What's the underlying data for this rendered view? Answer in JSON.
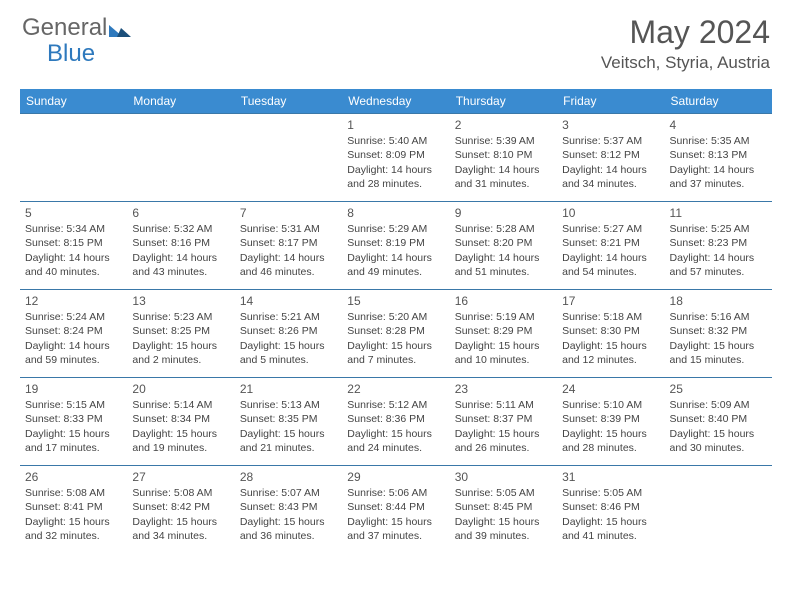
{
  "logo": {
    "text1": "General",
    "text2": "Blue"
  },
  "title": {
    "month": "May 2024",
    "location": "Veitsch, Styria, Austria"
  },
  "colors": {
    "header_bg": "#3a8bd0",
    "header_text": "#ffffff",
    "border": "#3a78a8",
    "text": "#444444",
    "logo_accent": "#2e79bd"
  },
  "weekdays": [
    "Sunday",
    "Monday",
    "Tuesday",
    "Wednesday",
    "Thursday",
    "Friday",
    "Saturday"
  ],
  "weeks": [
    [
      null,
      null,
      null,
      {
        "day": "1",
        "sunrise": "Sunrise: 5:40 AM",
        "sunset": "Sunset: 8:09 PM",
        "daylight1": "Daylight: 14 hours",
        "daylight2": "and 28 minutes."
      },
      {
        "day": "2",
        "sunrise": "Sunrise: 5:39 AM",
        "sunset": "Sunset: 8:10 PM",
        "daylight1": "Daylight: 14 hours",
        "daylight2": "and 31 minutes."
      },
      {
        "day": "3",
        "sunrise": "Sunrise: 5:37 AM",
        "sunset": "Sunset: 8:12 PM",
        "daylight1": "Daylight: 14 hours",
        "daylight2": "and 34 minutes."
      },
      {
        "day": "4",
        "sunrise": "Sunrise: 5:35 AM",
        "sunset": "Sunset: 8:13 PM",
        "daylight1": "Daylight: 14 hours",
        "daylight2": "and 37 minutes."
      }
    ],
    [
      {
        "day": "5",
        "sunrise": "Sunrise: 5:34 AM",
        "sunset": "Sunset: 8:15 PM",
        "daylight1": "Daylight: 14 hours",
        "daylight2": "and 40 minutes."
      },
      {
        "day": "6",
        "sunrise": "Sunrise: 5:32 AM",
        "sunset": "Sunset: 8:16 PM",
        "daylight1": "Daylight: 14 hours",
        "daylight2": "and 43 minutes."
      },
      {
        "day": "7",
        "sunrise": "Sunrise: 5:31 AM",
        "sunset": "Sunset: 8:17 PM",
        "daylight1": "Daylight: 14 hours",
        "daylight2": "and 46 minutes."
      },
      {
        "day": "8",
        "sunrise": "Sunrise: 5:29 AM",
        "sunset": "Sunset: 8:19 PM",
        "daylight1": "Daylight: 14 hours",
        "daylight2": "and 49 minutes."
      },
      {
        "day": "9",
        "sunrise": "Sunrise: 5:28 AM",
        "sunset": "Sunset: 8:20 PM",
        "daylight1": "Daylight: 14 hours",
        "daylight2": "and 51 minutes."
      },
      {
        "day": "10",
        "sunrise": "Sunrise: 5:27 AM",
        "sunset": "Sunset: 8:21 PM",
        "daylight1": "Daylight: 14 hours",
        "daylight2": "and 54 minutes."
      },
      {
        "day": "11",
        "sunrise": "Sunrise: 5:25 AM",
        "sunset": "Sunset: 8:23 PM",
        "daylight1": "Daylight: 14 hours",
        "daylight2": "and 57 minutes."
      }
    ],
    [
      {
        "day": "12",
        "sunrise": "Sunrise: 5:24 AM",
        "sunset": "Sunset: 8:24 PM",
        "daylight1": "Daylight: 14 hours",
        "daylight2": "and 59 minutes."
      },
      {
        "day": "13",
        "sunrise": "Sunrise: 5:23 AM",
        "sunset": "Sunset: 8:25 PM",
        "daylight1": "Daylight: 15 hours",
        "daylight2": "and 2 minutes."
      },
      {
        "day": "14",
        "sunrise": "Sunrise: 5:21 AM",
        "sunset": "Sunset: 8:26 PM",
        "daylight1": "Daylight: 15 hours",
        "daylight2": "and 5 minutes."
      },
      {
        "day": "15",
        "sunrise": "Sunrise: 5:20 AM",
        "sunset": "Sunset: 8:28 PM",
        "daylight1": "Daylight: 15 hours",
        "daylight2": "and 7 minutes."
      },
      {
        "day": "16",
        "sunrise": "Sunrise: 5:19 AM",
        "sunset": "Sunset: 8:29 PM",
        "daylight1": "Daylight: 15 hours",
        "daylight2": "and 10 minutes."
      },
      {
        "day": "17",
        "sunrise": "Sunrise: 5:18 AM",
        "sunset": "Sunset: 8:30 PM",
        "daylight1": "Daylight: 15 hours",
        "daylight2": "and 12 minutes."
      },
      {
        "day": "18",
        "sunrise": "Sunrise: 5:16 AM",
        "sunset": "Sunset: 8:32 PM",
        "daylight1": "Daylight: 15 hours",
        "daylight2": "and 15 minutes."
      }
    ],
    [
      {
        "day": "19",
        "sunrise": "Sunrise: 5:15 AM",
        "sunset": "Sunset: 8:33 PM",
        "daylight1": "Daylight: 15 hours",
        "daylight2": "and 17 minutes."
      },
      {
        "day": "20",
        "sunrise": "Sunrise: 5:14 AM",
        "sunset": "Sunset: 8:34 PM",
        "daylight1": "Daylight: 15 hours",
        "daylight2": "and 19 minutes."
      },
      {
        "day": "21",
        "sunrise": "Sunrise: 5:13 AM",
        "sunset": "Sunset: 8:35 PM",
        "daylight1": "Daylight: 15 hours",
        "daylight2": "and 21 minutes."
      },
      {
        "day": "22",
        "sunrise": "Sunrise: 5:12 AM",
        "sunset": "Sunset: 8:36 PM",
        "daylight1": "Daylight: 15 hours",
        "daylight2": "and 24 minutes."
      },
      {
        "day": "23",
        "sunrise": "Sunrise: 5:11 AM",
        "sunset": "Sunset: 8:37 PM",
        "daylight1": "Daylight: 15 hours",
        "daylight2": "and 26 minutes."
      },
      {
        "day": "24",
        "sunrise": "Sunrise: 5:10 AM",
        "sunset": "Sunset: 8:39 PM",
        "daylight1": "Daylight: 15 hours",
        "daylight2": "and 28 minutes."
      },
      {
        "day": "25",
        "sunrise": "Sunrise: 5:09 AM",
        "sunset": "Sunset: 8:40 PM",
        "daylight1": "Daylight: 15 hours",
        "daylight2": "and 30 minutes."
      }
    ],
    [
      {
        "day": "26",
        "sunrise": "Sunrise: 5:08 AM",
        "sunset": "Sunset: 8:41 PM",
        "daylight1": "Daylight: 15 hours",
        "daylight2": "and 32 minutes."
      },
      {
        "day": "27",
        "sunrise": "Sunrise: 5:08 AM",
        "sunset": "Sunset: 8:42 PM",
        "daylight1": "Daylight: 15 hours",
        "daylight2": "and 34 minutes."
      },
      {
        "day": "28",
        "sunrise": "Sunrise: 5:07 AM",
        "sunset": "Sunset: 8:43 PM",
        "daylight1": "Daylight: 15 hours",
        "daylight2": "and 36 minutes."
      },
      {
        "day": "29",
        "sunrise": "Sunrise: 5:06 AM",
        "sunset": "Sunset: 8:44 PM",
        "daylight1": "Daylight: 15 hours",
        "daylight2": "and 37 minutes."
      },
      {
        "day": "30",
        "sunrise": "Sunrise: 5:05 AM",
        "sunset": "Sunset: 8:45 PM",
        "daylight1": "Daylight: 15 hours",
        "daylight2": "and 39 minutes."
      },
      {
        "day": "31",
        "sunrise": "Sunrise: 5:05 AM",
        "sunset": "Sunset: 8:46 PM",
        "daylight1": "Daylight: 15 hours",
        "daylight2": "and 41 minutes."
      },
      null
    ]
  ]
}
